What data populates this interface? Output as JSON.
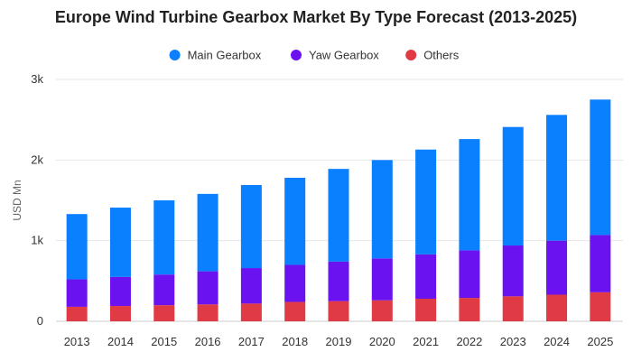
{
  "chart_data": {
    "type": "bar",
    "stacked": true,
    "title": "Europe Wind Turbine Gearbox Market By Type Forecast (2013-2025)",
    "ylabel": "USD Mn",
    "xlabel": "",
    "ylim": [
      0,
      3000
    ],
    "yticks": [
      0,
      1000,
      2000,
      3000
    ],
    "ytick_labels": [
      "0",
      "1k",
      "2k",
      "3k"
    ],
    "grid": true,
    "legend_position": "top-center",
    "categories": [
      "2013",
      "2014",
      "2015",
      "2016",
      "2017",
      "2018",
      "2019",
      "2020",
      "2021",
      "2022",
      "2023",
      "2024",
      "2025"
    ],
    "series": [
      {
        "name": "Main Gearbox",
        "color": "#0a80ff",
        "values": [
          810,
          860,
          920,
          960,
          1030,
          1080,
          1150,
          1220,
          1300,
          1380,
          1470,
          1560,
          1680
        ]
      },
      {
        "name": "Yaw Gearbox",
        "color": "#6a12f0",
        "values": [
          340,
          360,
          380,
          410,
          440,
          460,
          490,
          520,
          550,
          590,
          630,
          670,
          710
        ]
      },
      {
        "name": "Others",
        "color": "#e03a45",
        "values": [
          180,
          190,
          200,
          210,
          220,
          240,
          250,
          260,
          280,
          290,
          310,
          330,
          360
        ]
      }
    ]
  }
}
